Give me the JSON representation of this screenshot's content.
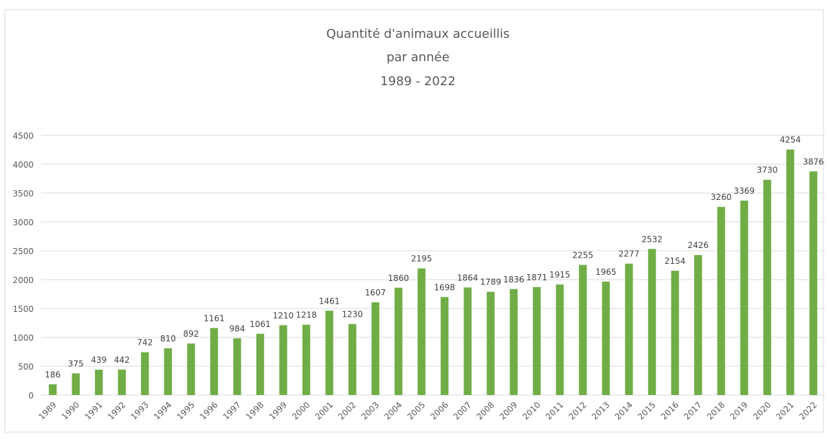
{
  "chart_data": {
    "type": "bar",
    "title": [
      "Quantité d'animaux accueillis",
      "par année",
      "1989 - 2022"
    ],
    "xlabel": "",
    "ylabel": "",
    "ylim": [
      0,
      4500
    ],
    "y_ticks": [
      0,
      500,
      1000,
      1500,
      2000,
      2500,
      3000,
      3500,
      4000,
      4500
    ],
    "grid": true,
    "legend": "none",
    "bar_color": "#70ad47",
    "categories": [
      "1989",
      "1990",
      "1991",
      "1992",
      "1993",
      "1994",
      "1995",
      "1996",
      "1997",
      "1998",
      "1999",
      "2000",
      "2001",
      "2002",
      "2003",
      "2004",
      "2005",
      "2006",
      "2007",
      "2008",
      "2009",
      "2010",
      "2011",
      "2012",
      "2013",
      "2014",
      "2015",
      "2016",
      "2017",
      "2018",
      "2019",
      "2020",
      "2021",
      "2022"
    ],
    "values": [
      186,
      375,
      439,
      442,
      742,
      810,
      892,
      1161,
      984,
      1061,
      1210,
      1218,
      1461,
      1230,
      1607,
      1860,
      2195,
      1698,
      1864,
      1789,
      1836,
      1871,
      1915,
      2255,
      1965,
      2277,
      2532,
      2154,
      2426,
      3260,
      3369,
      3730,
      4254,
      3876
    ]
  }
}
